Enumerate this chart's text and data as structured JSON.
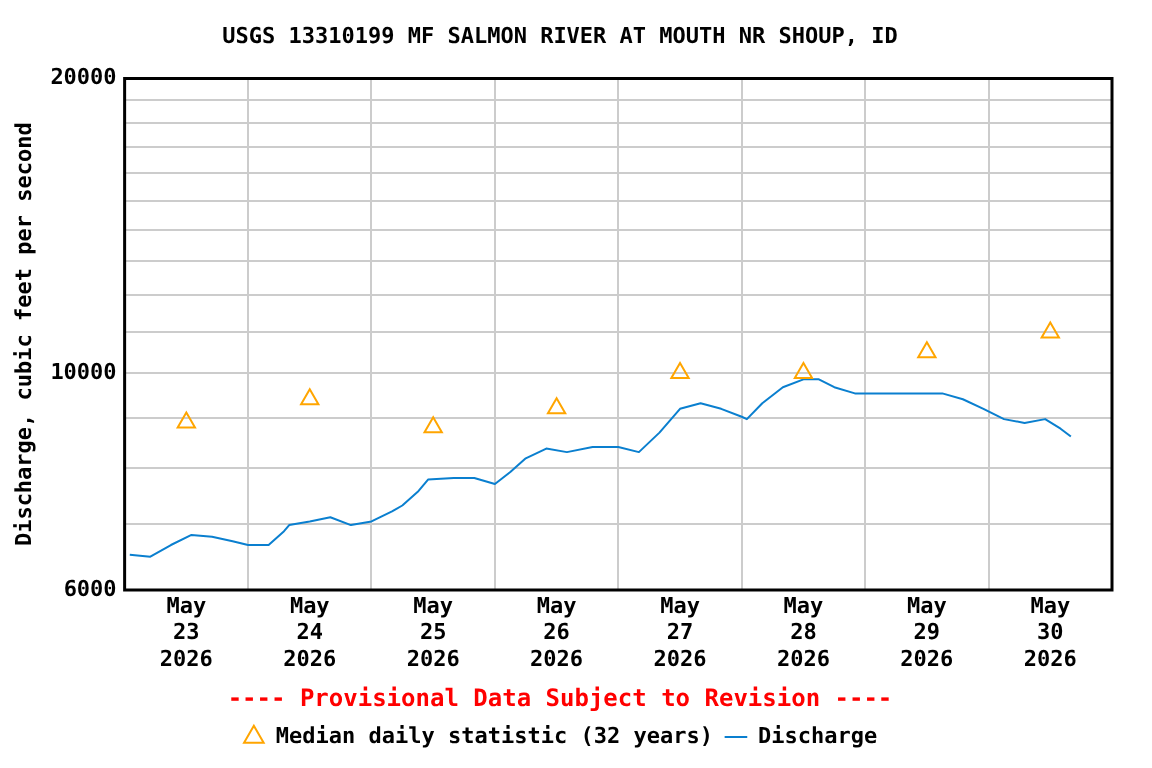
{
  "chart_data": {
    "type": "line",
    "title": "USGS 13310199 MF SALMON RIVER AT MOUTH NR SHOUP, ID",
    "ylabel": "Discharge, cubic feet per second",
    "annotations": [
      "---- Provisional Data Subject to Revision ----"
    ],
    "log": true,
    "grid": true,
    "legend": "bottom",
    "xlim": [
      "2026-05-23T00:00",
      "2026-05-31T00:00"
    ],
    "xticks": [
      {
        "value": "2026-05-23T00:00",
        "label": null
      },
      {
        "value": "2026-05-23T12:00",
        "label": "May 23 2026"
      },
      {
        "value": "2026-05-24T00:00",
        "label": null
      },
      {
        "value": "2026-05-24T12:00",
        "label": "May 24 2026"
      },
      {
        "value": "2026-05-25T00:00",
        "label": null
      },
      {
        "value": "2026-05-25T12:00",
        "label": "May 25 2026"
      },
      {
        "value": "2026-05-26T00:00",
        "label": null
      },
      {
        "value": "2026-05-26T12:00",
        "label": "May 26 2026"
      },
      {
        "value": "2026-05-27T00:00",
        "label": null
      },
      {
        "value": "2026-05-27T12:00",
        "label": "May 27 2026"
      },
      {
        "value": "2026-05-28T00:00",
        "label": null
      },
      {
        "value": "2026-05-28T12:00",
        "label": "May 28 2026"
      },
      {
        "value": "2026-05-29T00:00",
        "label": null
      },
      {
        "value": "2026-05-29T12:00",
        "label": "May 29 2026"
      },
      {
        "value": "2026-05-30T00:00",
        "label": null
      },
      {
        "value": "2026-05-30T12:00",
        "label": "May 30 2026"
      },
      {
        "value": "2026-05-31T00:00",
        "label": null
      }
    ],
    "ylim": [
      6000,
      20000
    ],
    "yticks": [
      6000,
      {
        "value": 7000,
        "label": null
      },
      {
        "value": 8000,
        "label": null
      },
      {
        "value": 9000,
        "label": null
      },
      10000,
      {
        "value": 11000,
        "label": null
      },
      {
        "value": 12000,
        "label": null
      },
      {
        "value": 13000,
        "label": null
      },
      {
        "value": 14000,
        "label": null
      },
      {
        "value": 15000,
        "label": null
      },
      {
        "value": 16000,
        "label": null
      },
      {
        "value": 17000,
        "label": null
      },
      {
        "value": 18000,
        "label": null
      },
      {
        "value": 19000,
        "label": null
      },
      20000
    ],
    "series": [
      {
        "name": "Median daily statistic (32 years)",
        "type": "scatter",
        "marker": "triangle",
        "color": "#ffa500",
        "x": [
          "2026-05-23T12:00",
          "2026-05-24T12:00",
          "2026-05-25T12:00",
          "2026-05-26T12:00",
          "2026-05-27T12:00",
          "2026-05-28T12:00",
          "2026-05-29T12:00",
          "2026-05-30T12:00"
        ],
        "values": [
          8900,
          9400,
          8800,
          9200,
          10000,
          10000,
          10500,
          11000
        ]
      },
      {
        "name": "Discharge",
        "type": "line",
        "marker": "none",
        "color": "#0a7fcf",
        "x": [
          "2026-05-23T01:00",
          "2026-05-23T05:00",
          "2026-05-23T09:00",
          "2026-05-23T13:00",
          "2026-05-23T17:00",
          "2026-05-23T21:00",
          "2026-05-24T00:00",
          "2026-05-24T04:00",
          "2026-05-24T07:00",
          "2026-05-24T08:00",
          "2026-05-24T12:00",
          "2026-05-24T16:00",
          "2026-05-24T20:00",
          "2026-05-25T00:00",
          "2026-05-25T04:00",
          "2026-05-25T06:00",
          "2026-05-25T09:00",
          "2026-05-25T11:00",
          "2026-05-25T16:00",
          "2026-05-25T20:00",
          "2026-05-26T00:00",
          "2026-05-26T03:00",
          "2026-05-26T06:00",
          "2026-05-26T10:00",
          "2026-05-26T14:00",
          "2026-05-26T19:00",
          "2026-05-27T00:00",
          "2026-05-27T04:00",
          "2026-05-27T08:00",
          "2026-05-27T12:00",
          "2026-05-27T16:00",
          "2026-05-27T20:00",
          "2026-05-28T00:00",
          "2026-05-28T01:00",
          "2026-05-28T04:00",
          "2026-05-28T08:00",
          "2026-05-28T12:00",
          "2026-05-28T15:00",
          "2026-05-28T18:00",
          "2026-05-28T22:00",
          "2026-05-29T02:00",
          "2026-05-29T06:00",
          "2026-05-29T11:00",
          "2026-05-29T15:00",
          "2026-05-29T19:00",
          "2026-05-29T23:00",
          "2026-05-30T03:00",
          "2026-05-30T07:00",
          "2026-05-30T11:00",
          "2026-05-30T14:00",
          "2026-05-30T16:00"
        ],
        "values": [
          6520,
          6490,
          6670,
          6830,
          6800,
          6730,
          6670,
          6670,
          6890,
          6990,
          7050,
          7120,
          6990,
          7050,
          7220,
          7320,
          7560,
          7780,
          7810,
          7810,
          7700,
          7920,
          8180,
          8370,
          8300,
          8400,
          8400,
          8300,
          8690,
          9190,
          9310,
          9190,
          9020,
          8970,
          9310,
          9670,
          9850,
          9850,
          9670,
          9530,
          9530,
          9530,
          9530,
          9530,
          9400,
          9190,
          8970,
          8890,
          8970,
          8770,
          8610
        ]
      }
    ]
  }
}
